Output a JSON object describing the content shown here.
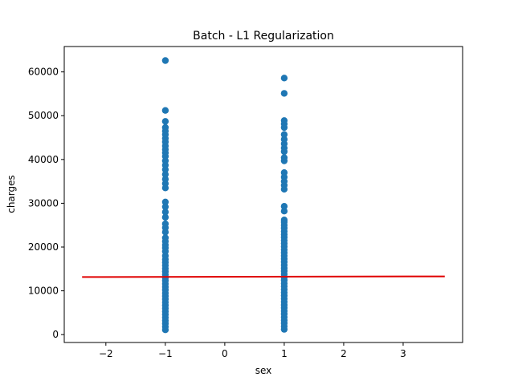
{
  "chart_data": {
    "type": "scatter",
    "title": "Batch - L1 Regularization",
    "xlabel": "sex",
    "ylabel": "charges",
    "xlim": [
      -2.7,
      4.0
    ],
    "ylim": [
      -1800,
      65800
    ],
    "xticks": [
      -2,
      -1,
      0,
      1,
      2,
      3
    ],
    "yticks": [
      0,
      10000,
      20000,
      30000,
      40000,
      50000,
      60000
    ],
    "xtick_labels": [
      "−2",
      "−1",
      "0",
      "1",
      "2",
      "3"
    ],
    "ytick_labels": [
      "0",
      "10000",
      "20000",
      "30000",
      "40000",
      "50000",
      "60000"
    ],
    "grid": false,
    "series": [
      {
        "type": "scatter",
        "color": "#1f77b4",
        "x_values": [
          -1,
          1
        ],
        "points": [
          {
            "x": -1,
            "y": 1100
          },
          {
            "x": -1,
            "y": 1800
          },
          {
            "x": -1,
            "y": 2500
          },
          {
            "x": -1,
            "y": 3200
          },
          {
            "x": -1,
            "y": 3900
          },
          {
            "x": -1,
            "y": 4600
          },
          {
            "x": -1,
            "y": 5300
          },
          {
            "x": -1,
            "y": 6000
          },
          {
            "x": -1,
            "y": 6700
          },
          {
            "x": -1,
            "y": 7400
          },
          {
            "x": -1,
            "y": 8100
          },
          {
            "x": -1,
            "y": 8800
          },
          {
            "x": -1,
            "y": 9500
          },
          {
            "x": -1,
            "y": 10200
          },
          {
            "x": -1,
            "y": 10900
          },
          {
            "x": -1,
            "y": 11600
          },
          {
            "x": -1,
            "y": 12300
          },
          {
            "x": -1,
            "y": 13000
          },
          {
            "x": -1,
            "y": 13700
          },
          {
            "x": -1,
            "y": 14400
          },
          {
            "x": -1,
            "y": 15100
          },
          {
            "x": -1,
            "y": 15800
          },
          {
            "x": -1,
            "y": 16500
          },
          {
            "x": -1,
            "y": 17200
          },
          {
            "x": -1,
            "y": 18000
          },
          {
            "x": -1,
            "y": 19000
          },
          {
            "x": -1,
            "y": 19800
          },
          {
            "x": -1,
            "y": 20500
          },
          {
            "x": -1,
            "y": 21300
          },
          {
            "x": -1,
            "y": 22100
          },
          {
            "x": -1,
            "y": 23400
          },
          {
            "x": -1,
            "y": 24400
          },
          {
            "x": -1,
            "y": 25300
          },
          {
            "x": -1,
            "y": 26800
          },
          {
            "x": -1,
            "y": 28000
          },
          {
            "x": -1,
            "y": 29200
          },
          {
            "x": -1,
            "y": 30300
          },
          {
            "x": -1,
            "y": 33500
          },
          {
            "x": -1,
            "y": 34500
          },
          {
            "x": -1,
            "y": 35500
          },
          {
            "x": -1,
            "y": 36600
          },
          {
            "x": -1,
            "y": 37700
          },
          {
            "x": -1,
            "y": 38700
          },
          {
            "x": -1,
            "y": 39700
          },
          {
            "x": -1,
            "y": 40700
          },
          {
            "x": -1,
            "y": 41500
          },
          {
            "x": -1,
            "y": 42300
          },
          {
            "x": -1,
            "y": 43100
          },
          {
            "x": -1,
            "y": 44000
          },
          {
            "x": -1,
            "y": 44800
          },
          {
            "x": -1,
            "y": 45700
          },
          {
            "x": -1,
            "y": 46500
          },
          {
            "x": -1,
            "y": 47300
          },
          {
            "x": -1,
            "y": 48700
          },
          {
            "x": -1,
            "y": 51200
          },
          {
            "x": -1,
            "y": 62600
          },
          {
            "x": 1,
            "y": 1200
          },
          {
            "x": 1,
            "y": 1900
          },
          {
            "x": 1,
            "y": 2600
          },
          {
            "x": 1,
            "y": 3300
          },
          {
            "x": 1,
            "y": 4000
          },
          {
            "x": 1,
            "y": 4700
          },
          {
            "x": 1,
            "y": 5400
          },
          {
            "x": 1,
            "y": 6100
          },
          {
            "x": 1,
            "y": 6800
          },
          {
            "x": 1,
            "y": 7500
          },
          {
            "x": 1,
            "y": 8200
          },
          {
            "x": 1,
            "y": 8900
          },
          {
            "x": 1,
            "y": 9600
          },
          {
            "x": 1,
            "y": 10300
          },
          {
            "x": 1,
            "y": 11000
          },
          {
            "x": 1,
            "y": 11700
          },
          {
            "x": 1,
            "y": 12400
          },
          {
            "x": 1,
            "y": 13100
          },
          {
            "x": 1,
            "y": 13800
          },
          {
            "x": 1,
            "y": 14500
          },
          {
            "x": 1,
            "y": 15200
          },
          {
            "x": 1,
            "y": 15900
          },
          {
            "x": 1,
            "y": 16600
          },
          {
            "x": 1,
            "y": 17300
          },
          {
            "x": 1,
            "y": 18000
          },
          {
            "x": 1,
            "y": 18700
          },
          {
            "x": 1,
            "y": 19400
          },
          {
            "x": 1,
            "y": 20100
          },
          {
            "x": 1,
            "y": 20800
          },
          {
            "x": 1,
            "y": 21500
          },
          {
            "x": 1,
            "y": 22200
          },
          {
            "x": 1,
            "y": 22900
          },
          {
            "x": 1,
            "y": 23600
          },
          {
            "x": 1,
            "y": 24300
          },
          {
            "x": 1,
            "y": 25000
          },
          {
            "x": 1,
            "y": 25700
          },
          {
            "x": 1,
            "y": 26200
          },
          {
            "x": 1,
            "y": 28200
          },
          {
            "x": 1,
            "y": 29300
          },
          {
            "x": 1,
            "y": 33200
          },
          {
            "x": 1,
            "y": 34100
          },
          {
            "x": 1,
            "y": 35000
          },
          {
            "x": 1,
            "y": 36000
          },
          {
            "x": 1,
            "y": 37000
          },
          {
            "x": 1,
            "y": 39700
          },
          {
            "x": 1,
            "y": 40400
          },
          {
            "x": 1,
            "y": 41800
          },
          {
            "x": 1,
            "y": 42600
          },
          {
            "x": 1,
            "y": 43600
          },
          {
            "x": 1,
            "y": 44600
          },
          {
            "x": 1,
            "y": 45700
          },
          {
            "x": 1,
            "y": 47300
          },
          {
            "x": 1,
            "y": 48100
          },
          {
            "x": 1,
            "y": 48900
          },
          {
            "x": 1,
            "y": 55100
          },
          {
            "x": 1,
            "y": 58600
          }
        ]
      },
      {
        "type": "line",
        "color": "#e00000",
        "points": [
          {
            "x": -2.4,
            "y": 13150
          },
          {
            "x": 3.7,
            "y": 13300
          }
        ]
      }
    ]
  }
}
